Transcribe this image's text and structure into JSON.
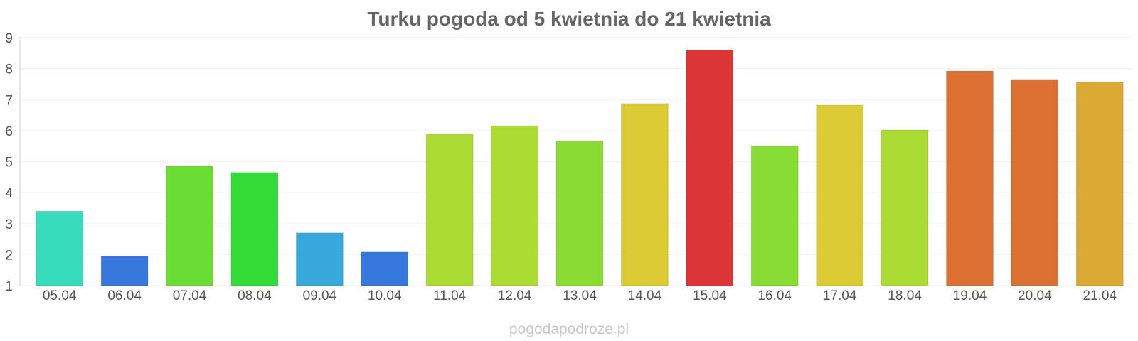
{
  "chart_data": {
    "type": "bar",
    "title": "Turku pogoda od 5 kwietnia do 21 kwietnia",
    "xlabel": "",
    "ylabel": "",
    "categories": [
      "05.04",
      "06.04",
      "07.04",
      "08.04",
      "09.04",
      "10.04",
      "11.04",
      "12.04",
      "13.04",
      "14.04",
      "15.04",
      "16.04",
      "17.04",
      "18.04",
      "19.04",
      "20.04",
      "21.04"
    ],
    "values": [
      3.4,
      1.95,
      4.85,
      4.65,
      2.7,
      2.08,
      5.88,
      6.15,
      5.65,
      6.87,
      8.6,
      5.5,
      6.82,
      6.02,
      7.92,
      7.65,
      7.57
    ],
    "colors": [
      "#36dcbb",
      "#3677dc",
      "#6adc36",
      "#33dc39",
      "#36a8dc",
      "#3677dc",
      "#aadc33",
      "#aadc33",
      "#8adc33",
      "#dbcb32",
      "#dc3535",
      "#87dc35",
      "#dbcb32",
      "#aadc33",
      "#dc7033",
      "#dc7033",
      "#dba833"
    ],
    "ylim": [
      1,
      9
    ],
    "yticks": [
      "1",
      "2",
      "3",
      "4",
      "5",
      "6",
      "7",
      "8",
      "9"
    ],
    "grid": true,
    "legend": "none"
  },
  "watermark": "pogodapodroze.pl"
}
